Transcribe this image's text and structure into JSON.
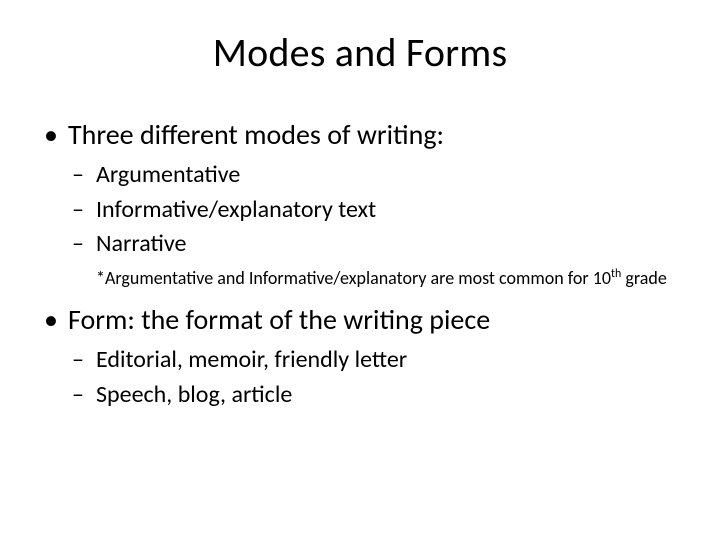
{
  "slide": {
    "background_color": "#ffffff",
    "text_color": "#000000",
    "font_family": "Calibri",
    "title": "Modes and Forms",
    "title_fontsize": 40,
    "body_fontsize_l1": 28,
    "body_fontsize_l2": 24,
    "note_fontsize": 18,
    "bullets": [
      {
        "text": "Three different modes of writing:",
        "sub": [
          "Argumentative",
          "Informative/explanatory text",
          "Narrative"
        ],
        "note_prefix": "*Argumentative and Informative/explanatory are most common for 10",
        "note_super": "th",
        "note_suffix": " grade"
      },
      {
        "text": "Form: the format of the writing piece",
        "sub": [
          "Editorial, memoir, friendly letter",
          "Speech, blog, article"
        ]
      }
    ]
  }
}
